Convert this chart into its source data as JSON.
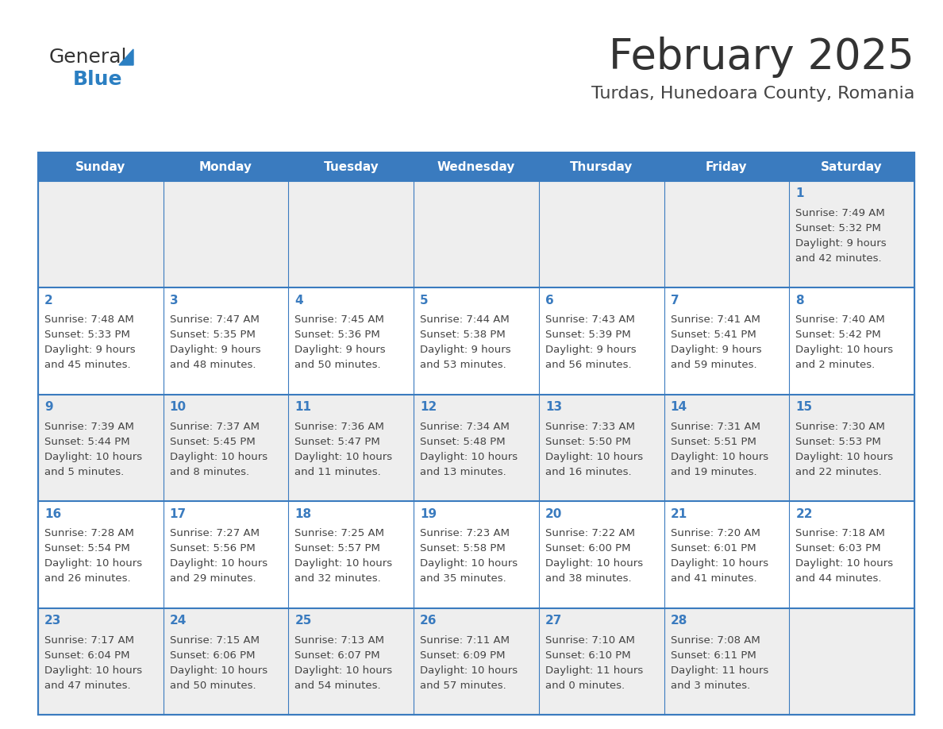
{
  "title": "February 2025",
  "subtitle": "Turdas, Hunedoara County, Romania",
  "header_color": "#3a7bbf",
  "header_text_color": "#ffffff",
  "row0_bg": "#eeeeee",
  "row_odd_bg": "#eeeeee",
  "row_even_bg": "#ffffff",
  "border_color": "#3a7bbf",
  "day_headers": [
    "Sunday",
    "Monday",
    "Tuesday",
    "Wednesday",
    "Thursday",
    "Friday",
    "Saturday"
  ],
  "title_color": "#333333",
  "subtitle_color": "#444444",
  "day_number_color": "#3a7bbf",
  "cell_text_color": "#444444",
  "logo_general_color": "#333333",
  "logo_blue_color": "#2b7fc2",
  "logo_triangle_color": "#2b7fc2",
  "calendar_data": [
    [
      null,
      null,
      null,
      null,
      null,
      null,
      {
        "day": 1,
        "sunrise": "7:49 AM",
        "sunset": "5:32 PM",
        "daylight_h": "9 hours",
        "daylight_m": "and 42 minutes."
      }
    ],
    [
      {
        "day": 2,
        "sunrise": "7:48 AM",
        "sunset": "5:33 PM",
        "daylight_h": "9 hours",
        "daylight_m": "and 45 minutes."
      },
      {
        "day": 3,
        "sunrise": "7:47 AM",
        "sunset": "5:35 PM",
        "daylight_h": "9 hours",
        "daylight_m": "and 48 minutes."
      },
      {
        "day": 4,
        "sunrise": "7:45 AM",
        "sunset": "5:36 PM",
        "daylight_h": "9 hours",
        "daylight_m": "and 50 minutes."
      },
      {
        "day": 5,
        "sunrise": "7:44 AM",
        "sunset": "5:38 PM",
        "daylight_h": "9 hours",
        "daylight_m": "and 53 minutes."
      },
      {
        "day": 6,
        "sunrise": "7:43 AM",
        "sunset": "5:39 PM",
        "daylight_h": "9 hours",
        "daylight_m": "and 56 minutes."
      },
      {
        "day": 7,
        "sunrise": "7:41 AM",
        "sunset": "5:41 PM",
        "daylight_h": "9 hours",
        "daylight_m": "and 59 minutes."
      },
      {
        "day": 8,
        "sunrise": "7:40 AM",
        "sunset": "5:42 PM",
        "daylight_h": "10 hours",
        "daylight_m": "and 2 minutes."
      }
    ],
    [
      {
        "day": 9,
        "sunrise": "7:39 AM",
        "sunset": "5:44 PM",
        "daylight_h": "10 hours",
        "daylight_m": "and 5 minutes."
      },
      {
        "day": 10,
        "sunrise": "7:37 AM",
        "sunset": "5:45 PM",
        "daylight_h": "10 hours",
        "daylight_m": "and 8 minutes."
      },
      {
        "day": 11,
        "sunrise": "7:36 AM",
        "sunset": "5:47 PM",
        "daylight_h": "10 hours",
        "daylight_m": "and 11 minutes."
      },
      {
        "day": 12,
        "sunrise": "7:34 AM",
        "sunset": "5:48 PM",
        "daylight_h": "10 hours",
        "daylight_m": "and 13 minutes."
      },
      {
        "day": 13,
        "sunrise": "7:33 AM",
        "sunset": "5:50 PM",
        "daylight_h": "10 hours",
        "daylight_m": "and 16 minutes."
      },
      {
        "day": 14,
        "sunrise": "7:31 AM",
        "sunset": "5:51 PM",
        "daylight_h": "10 hours",
        "daylight_m": "and 19 minutes."
      },
      {
        "day": 15,
        "sunrise": "7:30 AM",
        "sunset": "5:53 PM",
        "daylight_h": "10 hours",
        "daylight_m": "and 22 minutes."
      }
    ],
    [
      {
        "day": 16,
        "sunrise": "7:28 AM",
        "sunset": "5:54 PM",
        "daylight_h": "10 hours",
        "daylight_m": "and 26 minutes."
      },
      {
        "day": 17,
        "sunrise": "7:27 AM",
        "sunset": "5:56 PM",
        "daylight_h": "10 hours",
        "daylight_m": "and 29 minutes."
      },
      {
        "day": 18,
        "sunrise": "7:25 AM",
        "sunset": "5:57 PM",
        "daylight_h": "10 hours",
        "daylight_m": "and 32 minutes."
      },
      {
        "day": 19,
        "sunrise": "7:23 AM",
        "sunset": "5:58 PM",
        "daylight_h": "10 hours",
        "daylight_m": "and 35 minutes."
      },
      {
        "day": 20,
        "sunrise": "7:22 AM",
        "sunset": "6:00 PM",
        "daylight_h": "10 hours",
        "daylight_m": "and 38 minutes."
      },
      {
        "day": 21,
        "sunrise": "7:20 AM",
        "sunset": "6:01 PM",
        "daylight_h": "10 hours",
        "daylight_m": "and 41 minutes."
      },
      {
        "day": 22,
        "sunrise": "7:18 AM",
        "sunset": "6:03 PM",
        "daylight_h": "10 hours",
        "daylight_m": "and 44 minutes."
      }
    ],
    [
      {
        "day": 23,
        "sunrise": "7:17 AM",
        "sunset": "6:04 PM",
        "daylight_h": "10 hours",
        "daylight_m": "and 47 minutes."
      },
      {
        "day": 24,
        "sunrise": "7:15 AM",
        "sunset": "6:06 PM",
        "daylight_h": "10 hours",
        "daylight_m": "and 50 minutes."
      },
      {
        "day": 25,
        "sunrise": "7:13 AM",
        "sunset": "6:07 PM",
        "daylight_h": "10 hours",
        "daylight_m": "and 54 minutes."
      },
      {
        "day": 26,
        "sunrise": "7:11 AM",
        "sunset": "6:09 PM",
        "daylight_h": "10 hours",
        "daylight_m": "and 57 minutes."
      },
      {
        "day": 27,
        "sunrise": "7:10 AM",
        "sunset": "6:10 PM",
        "daylight_h": "11 hours",
        "daylight_m": "and 0 minutes."
      },
      {
        "day": 28,
        "sunrise": "7:08 AM",
        "sunset": "6:11 PM",
        "daylight_h": "11 hours",
        "daylight_m": "and 3 minutes."
      },
      null
    ]
  ]
}
